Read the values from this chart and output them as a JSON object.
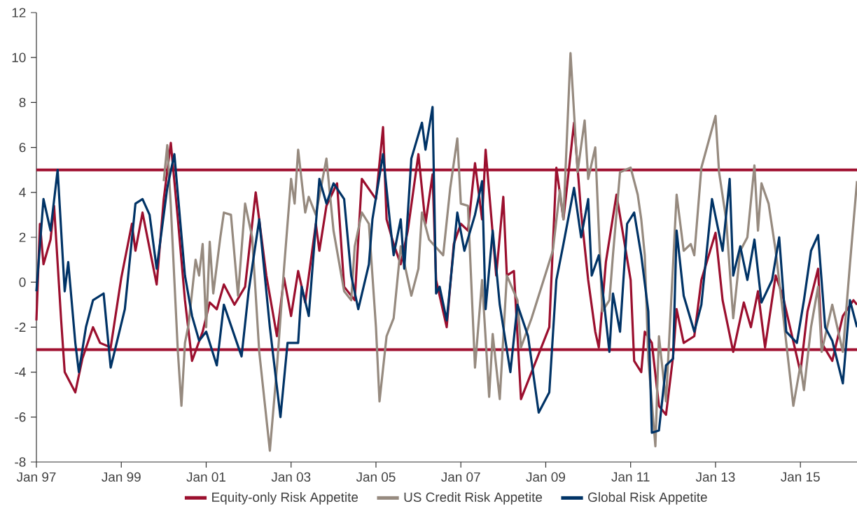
{
  "chart_data": {
    "type": "line",
    "xlim": [
      "1997-01",
      "2016-05"
    ],
    "ylim": [
      -8,
      12
    ],
    "xticks": [
      {
        "value": "1997-01",
        "label": "Jan 97"
      },
      {
        "value": "1999-01",
        "label": "Jan 99"
      },
      {
        "value": "2001-01",
        "label": "Jan 01"
      },
      {
        "value": "2003-01",
        "label": "Jan 03"
      },
      {
        "value": "2005-01",
        "label": "Jan 05"
      },
      {
        "value": "2007-01",
        "label": "Jan 07"
      },
      {
        "value": "2009-01",
        "label": "Jan 09"
      },
      {
        "value": "2011-01",
        "label": "Jan 11"
      },
      {
        "value": "2013-01",
        "label": "Jan 13"
      },
      {
        "value": "2015-01",
        "label": "Jan 15"
      }
    ],
    "yticks": [
      -8,
      -6,
      -4,
      -2,
      0,
      2,
      4,
      6,
      8,
      10,
      12
    ],
    "legend": "bottom",
    "ref_lines": [
      {
        "axis": "y",
        "value": 5,
        "color": "#a01030"
      },
      {
        "axis": "y",
        "value": -3,
        "color": "#a01030"
      }
    ],
    "series": [
      {
        "name": "Equity-only Risk Appetite",
        "color": "#9b0f2e",
        "x": [
          "1997-01",
          "1997-02",
          "1997-03",
          "1997-05",
          "1997-06",
          "1997-08",
          "1997-09",
          "1997-12",
          "1998-02",
          "1998-05",
          "1998-07",
          "1998-10",
          "1999-01",
          "1999-04",
          "1999-05",
          "1999-07",
          "1999-11",
          "2000-01",
          "2000-03",
          "2000-05",
          "2000-07",
          "2000-09",
          "2000-12",
          "2001-02",
          "2001-04",
          "2001-06",
          "2001-09",
          "2001-12",
          "2002-03",
          "2002-06",
          "2002-09",
          "2002-11",
          "2003-01",
          "2003-03",
          "2003-05",
          "2003-08",
          "2003-09",
          "2003-11",
          "2004-02",
          "2004-04",
          "2004-07",
          "2004-09",
          "2005-01",
          "2005-03",
          "2005-04",
          "2005-06",
          "2005-08",
          "2005-10",
          "2006-01",
          "2006-03",
          "2006-05",
          "2006-06",
          "2006-09",
          "2006-11",
          "2007-01",
          "2007-03",
          "2007-05",
          "2007-07",
          "2007-08",
          "2007-11",
          "2008-01",
          "2008-02",
          "2008-04",
          "2008-06",
          "2008-09",
          "2009-02",
          "2009-04",
          "2009-06",
          "2009-09",
          "2009-11",
          "2010-01",
          "2010-03",
          "2010-04",
          "2010-06",
          "2010-09",
          "2011-01",
          "2011-02",
          "2011-04",
          "2011-05",
          "2011-07",
          "2011-09",
          "2011-11",
          "2012-01",
          "2012-02",
          "2012-04",
          "2012-07",
          "2012-09",
          "2013-01",
          "2013-03",
          "2013-06",
          "2013-09",
          "2013-11",
          "2014-01",
          "2014-03",
          "2014-06",
          "2014-08",
          "2015-01",
          "2015-03",
          "2015-06",
          "2015-07",
          "2015-10",
          "2016-01",
          "2016-04",
          "2016-05"
        ],
        "values": [
          -1.7,
          2.6,
          0.8,
          1.9,
          3.4,
          -1.7,
          -4.0,
          -4.9,
          -3.4,
          -2.0,
          -2.7,
          -2.9,
          0.2,
          2.6,
          1.4,
          3.1,
          -0.1,
          3.7,
          6.2,
          2.8,
          -0.8,
          -3.5,
          -2.2,
          -0.9,
          -1.2,
          -0.1,
          -1.0,
          -0.2,
          4.0,
          0.3,
          -2.4,
          0.2,
          -1.5,
          0.5,
          -0.9,
          2.6,
          1.4,
          3.4,
          4.4,
          -0.2,
          -0.8,
          4.6,
          3.7,
          6.9,
          2.8,
          1.7,
          0.8,
          2.3,
          5.7,
          2.6,
          4.8,
          0.1,
          -2.0,
          1.7,
          2.6,
          2.3,
          5.3,
          2.8,
          5.9,
          0.3,
          3.8,
          0.3,
          0.5,
          -5.2,
          -4.0,
          -2.0,
          5.1,
          2.8,
          7.1,
          3.1,
          0.1,
          -2.2,
          -2.9,
          0.9,
          3.9,
          0.1,
          -3.5,
          -4.0,
          -2.2,
          -2.7,
          -5.5,
          -5.9,
          -3.3,
          -1.2,
          -2.7,
          -2.4,
          0.1,
          2.2,
          -0.8,
          -3.1,
          -0.9,
          -2.0,
          -0.4,
          -2.9,
          0.3,
          -0.6,
          -4.0,
          -1.3,
          0.6,
          -2.7,
          -3.5,
          -1.5,
          -0.8,
          -1.0
        ]
      },
      {
        "name": "US Credit Risk Appetite",
        "color": "#968a7f",
        "x": [
          "2000-01",
          "2000-02",
          "2000-03",
          "2000-04",
          "2000-05",
          "2000-06",
          "2000-07",
          "2000-08",
          "2000-10",
          "2000-11",
          "2000-12",
          "2001-01",
          "2001-02",
          "2001-03",
          "2001-05",
          "2001-06",
          "2001-08",
          "2001-10",
          "2001-12",
          "2002-02",
          "2002-04",
          "2002-07",
          "2002-09",
          "2002-11",
          "2003-01",
          "2003-02",
          "2003-03",
          "2003-05",
          "2003-06",
          "2003-08",
          "2003-11",
          "2004-01",
          "2004-04",
          "2004-06",
          "2004-07",
          "2004-09",
          "2004-11",
          "2005-01",
          "2005-02",
          "2005-04",
          "2005-06",
          "2005-08",
          "2005-11",
          "2006-01",
          "2006-02",
          "2006-04",
          "2006-08",
          "2006-10",
          "2006-12",
          "2007-01",
          "2007-03",
          "2007-05",
          "2007-07",
          "2007-09",
          "2007-10",
          "2007-12",
          "2008-02",
          "2008-05",
          "2008-06",
          "2008-09",
          "2009-03",
          "2009-05",
          "2009-06",
          "2009-08",
          "2009-10",
          "2009-12",
          "2010-01",
          "2010-03",
          "2010-05",
          "2010-07",
          "2010-08",
          "2010-10",
          "2011-01",
          "2011-03",
          "2011-04",
          "2011-05",
          "2011-06",
          "2011-08",
          "2011-09",
          "2011-11",
          "2012-01",
          "2012-02",
          "2012-04",
          "2012-06",
          "2012-07",
          "2012-09",
          "2013-01",
          "2013-02",
          "2013-04",
          "2013-06",
          "2013-08",
          "2013-10",
          "2013-12",
          "2014-01",
          "2014-02",
          "2014-04",
          "2014-06",
          "2014-08",
          "2014-11",
          "2015-01",
          "2015-02",
          "2015-04",
          "2015-06",
          "2015-07",
          "2015-10",
          "2016-01",
          "2016-03",
          "2016-05"
        ],
        "values": [
          4.5,
          6.1,
          3.4,
          0.1,
          -3.1,
          -5.5,
          -2.7,
          -1.9,
          1.0,
          0.3,
          1.7,
          -2.0,
          1.8,
          -0.5,
          2.0,
          3.1,
          3.0,
          -0.6,
          3.5,
          2.0,
          -3.1,
          -7.5,
          -3.8,
          0.6,
          4.6,
          3.5,
          5.9,
          3.1,
          3.8,
          3.0,
          5.5,
          2.3,
          -0.4,
          -0.8,
          1.6,
          3.1,
          2.6,
          -2.0,
          -5.3,
          -2.4,
          -1.6,
          1.6,
          -0.6,
          0.6,
          3.1,
          1.9,
          1.2,
          4.2,
          6.4,
          3.5,
          3.4,
          -3.8,
          0.1,
          -5.1,
          -2.3,
          -5.2,
          0.3,
          -0.8,
          -2.9,
          -1.6,
          1.4,
          4.1,
          2.8,
          10.2,
          4.9,
          7.2,
          4.6,
          6.0,
          -1.3,
          -0.8,
          1.2,
          4.9,
          5.1,
          3.9,
          2.8,
          1.2,
          -3.4,
          -7.3,
          -2.4,
          -5.3,
          0.8,
          3.9,
          1.4,
          1.7,
          1.2,
          5.1,
          7.4,
          4.9,
          2.8,
          -1.6,
          1.4,
          2.0,
          5.2,
          2.3,
          4.4,
          3.5,
          1.4,
          -1.3,
          -5.5,
          -3.7,
          -4.8,
          -2.0,
          -0.2,
          -3.1,
          -1.0,
          -3.1,
          0.8,
          4.5
        ]
      },
      {
        "name": "Global Risk Appetite",
        "color": "#003366",
        "x": [
          "1997-01",
          "1997-03",
          "1997-05",
          "1997-07",
          "1997-09",
          "1997-10",
          "1997-12",
          "1998-01",
          "1998-03",
          "1998-05",
          "1998-08",
          "1998-10",
          "1999-02",
          "1999-05",
          "1999-07",
          "1999-09",
          "1999-11",
          "2000-02",
          "2000-04",
          "2000-07",
          "2000-09",
          "2000-11",
          "2001-01",
          "2001-04",
          "2001-06",
          "2001-11",
          "2002-01",
          "2002-04",
          "2002-07",
          "2002-10",
          "2002-12",
          "2003-03",
          "2003-04",
          "2003-06",
          "2003-09",
          "2003-11",
          "2004-01",
          "2004-04",
          "2004-06",
          "2004-08",
          "2004-11",
          "2004-12",
          "2005-03",
          "2005-05",
          "2005-06",
          "2005-08",
          "2005-09",
          "2005-11",
          "2006-02",
          "2006-03",
          "2006-05",
          "2006-06",
          "2006-07",
          "2006-09",
          "2006-12",
          "2007-02",
          "2007-05",
          "2007-07",
          "2007-08",
          "2007-10",
          "2007-12",
          "2008-03",
          "2008-05",
          "2008-08",
          "2008-11",
          "2009-02",
          "2009-04",
          "2009-06",
          "2009-09",
          "2009-11",
          "2010-01",
          "2010-02",
          "2010-04",
          "2010-07",
          "2010-08",
          "2010-10",
          "2010-12",
          "2011-02",
          "2011-04",
          "2011-06",
          "2011-07",
          "2011-09",
          "2011-11",
          "2012-01",
          "2012-02",
          "2012-04",
          "2012-07",
          "2012-09",
          "2012-12",
          "2013-03",
          "2013-05",
          "2013-06",
          "2013-08",
          "2013-10",
          "2013-12",
          "2014-02",
          "2014-05",
          "2014-07",
          "2014-09",
          "2014-12",
          "2015-02",
          "2015-04",
          "2015-06",
          "2015-08",
          "2015-10",
          "2016-01",
          "2016-03",
          "2016-05"
        ],
        "values": [
          -0.4,
          3.7,
          2.3,
          5.0,
          -0.4,
          0.9,
          -2.7,
          -4.0,
          -2.0,
          -0.8,
          -0.5,
          -3.8,
          -1.2,
          3.5,
          3.7,
          3.0,
          0.6,
          4.2,
          5.7,
          0.3,
          -1.5,
          -2.6,
          -2.2,
          -3.7,
          -1.0,
          -3.3,
          -0.4,
          2.8,
          -2.0,
          -6.0,
          -2.7,
          -2.7,
          -0.2,
          -1.5,
          4.6,
          3.5,
          4.4,
          3.7,
          0.3,
          -1.2,
          0.8,
          2.8,
          5.7,
          2.6,
          1.2,
          2.8,
          0.6,
          5.5,
          7.1,
          5.9,
          7.8,
          -0.5,
          -0.2,
          -1.7,
          3.1,
          1.4,
          3.0,
          4.5,
          -1.2,
          2.3,
          -1.0,
          -4.0,
          -1.0,
          -2.4,
          -5.8,
          -4.9,
          0.1,
          1.7,
          4.2,
          2.0,
          3.7,
          0.3,
          1.2,
          -3.1,
          -0.5,
          -2.2,
          2.6,
          3.1,
          1.2,
          -1.3,
          -6.7,
          -6.6,
          -3.7,
          -3.4,
          2.3,
          -0.6,
          -2.2,
          -1.0,
          3.7,
          1.4,
          4.6,
          0.3,
          1.6,
          0.1,
          1.9,
          -0.9,
          0.1,
          2.0,
          -2.2,
          -2.7,
          -0.8,
          1.4,
          2.1,
          -2.0,
          -2.6,
          -4.5,
          -0.8,
          -2.0
        ]
      }
    ]
  }
}
